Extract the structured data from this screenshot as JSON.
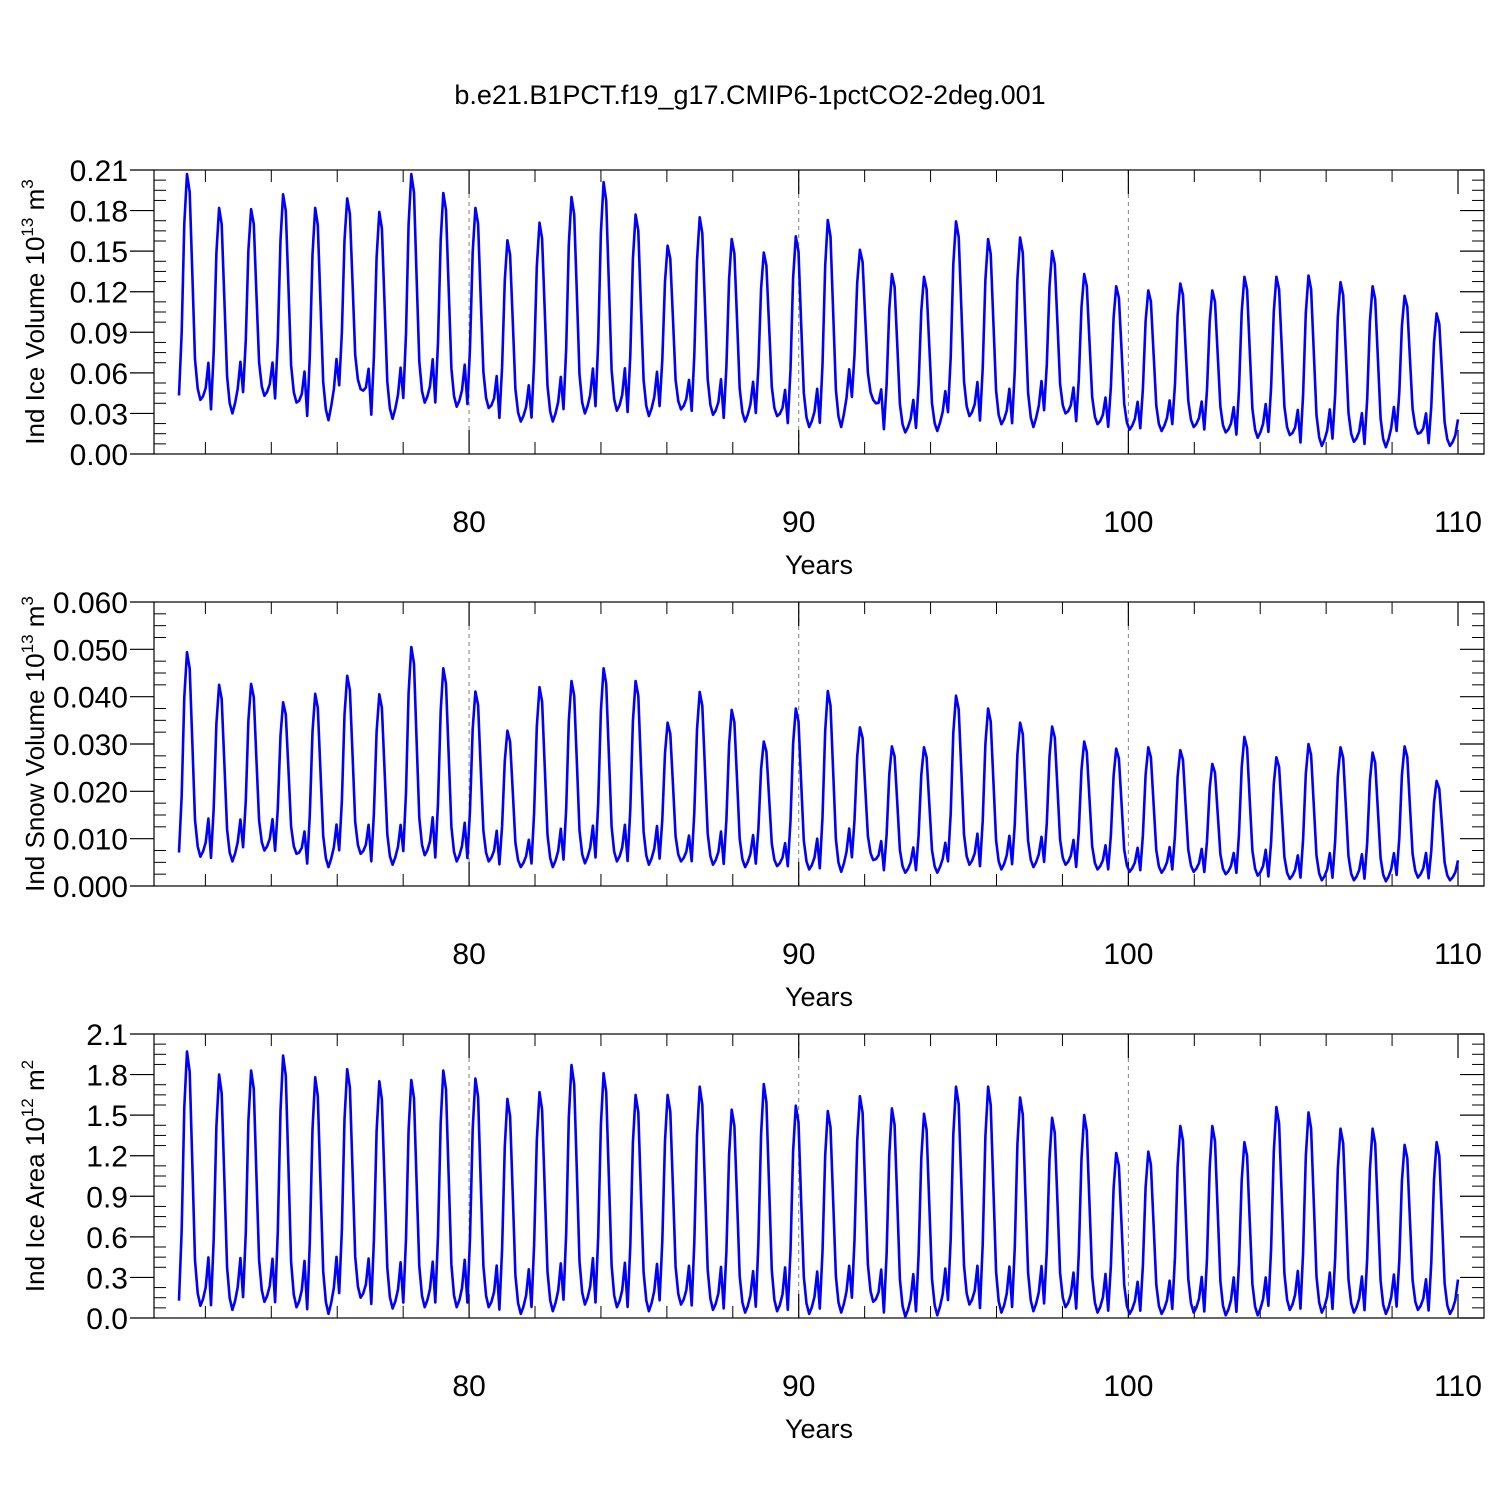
{
  "title": "b.e21.B1PCT.f19_g17.CMIP6-1pctCO2-2deg.001",
  "colors": {
    "series": "#0000ff",
    "axis": "#000000",
    "gridline": "#7f7f7f"
  },
  "chart_data": [
    {
      "type": "line",
      "xlabel": "Years",
      "ylabel": "Ind Ice Volume 10",
      "ylabel_exp": "13",
      "ylabel_unit": " m",
      "ylabel_unit_exp": "3",
      "xlim": [
        71.2,
        110
      ],
      "ylim": [
        0,
        0.21
      ],
      "xticks": [
        "80",
        "90",
        "100",
        "110"
      ],
      "yticks": [
        "0.00",
        "0.03",
        "0.06",
        "0.09",
        "0.12",
        "0.15",
        "0.18",
        "0.21"
      ],
      "ytick_values": [
        0,
        0.03,
        0.06,
        0.09,
        0.12,
        0.15,
        0.18,
        0.21
      ],
      "grid": "dashed vertical at 80, 90, 100",
      "series": [
        {
          "annual_min": [
            0.04,
            0.03,
            0.043,
            0.038,
            0.025,
            0.048,
            0.026,
            0.038,
            0.035,
            0.034,
            0.024,
            0.024,
            0.03,
            0.032,
            0.028,
            0.033,
            0.029,
            0.024,
            0.028,
            0.02,
            0.02,
            0.04,
            0.016,
            0.017,
            0.028,
            0.022,
            0.02,
            0.03,
            0.022,
            0.018,
            0.017,
            0.02,
            0.016,
            0.012,
            0.014,
            0.006,
            0.009,
            0.005,
            0.015,
            0.006
          ],
          "annual_max": [
            0.207,
            0.182,
            0.181,
            0.192,
            0.182,
            0.189,
            0.179,
            0.207,
            0.193,
            0.182,
            0.158,
            0.171,
            0.19,
            0.201,
            0.177,
            0.154,
            0.175,
            0.159,
            0.149,
            0.161,
            0.173,
            0.151,
            0.133,
            0.131,
            0.172,
            0.159,
            0.16,
            0.15,
            0.133,
            0.124,
            0.121,
            0.126,
            0.121,
            0.131,
            0.131,
            0.132,
            0.127,
            0.124,
            0.117,
            0.104
          ]
        }
      ]
    },
    {
      "type": "line",
      "xlabel": "Years",
      "ylabel": "Ind Snow Volume 10",
      "ylabel_exp": "13",
      "ylabel_unit": " m",
      "ylabel_unit_exp": "3",
      "xlim": [
        71.2,
        110
      ],
      "ylim": [
        0,
        0.06
      ],
      "xticks": [
        "80",
        "90",
        "100",
        "110"
      ],
      "yticks": [
        "0.000",
        "0.010",
        "0.020",
        "0.030",
        "0.040",
        "0.050",
        "0.060"
      ],
      "ytick_values": [
        0,
        0.01,
        0.02,
        0.03,
        0.04,
        0.05,
        0.06
      ],
      "grid": "dashed vertical at 80, 90, 100",
      "series": [
        {
          "annual_min": [
            0.0062,
            0.0052,
            0.0075,
            0.0068,
            0.004,
            0.0068,
            0.0045,
            0.0065,
            0.0052,
            0.0052,
            0.004,
            0.004,
            0.0048,
            0.0052,
            0.0045,
            0.0052,
            0.0045,
            0.004,
            0.0042,
            0.0035,
            0.003,
            0.0055,
            0.0028,
            0.0028,
            0.0045,
            0.0035,
            0.004,
            0.0045,
            0.0035,
            0.003,
            0.0028,
            0.003,
            0.0025,
            0.0022,
            0.0015,
            0.0012,
            0.0012,
            0.001,
            0.0018,
            0.0012
          ],
          "annual_max": [
            0.0494,
            0.0425,
            0.0427,
            0.0388,
            0.0406,
            0.0444,
            0.0405,
            0.0505,
            0.046,
            0.0411,
            0.0328,
            0.042,
            0.0433,
            0.046,
            0.0433,
            0.0345,
            0.041,
            0.0372,
            0.0305,
            0.0375,
            0.0412,
            0.0335,
            0.0295,
            0.0293,
            0.0402,
            0.0375,
            0.0345,
            0.0337,
            0.0305,
            0.029,
            0.0293,
            0.0287,
            0.0258,
            0.0315,
            0.0272,
            0.03,
            0.0293,
            0.0282,
            0.0295,
            0.0222
          ]
        }
      ]
    },
    {
      "type": "line",
      "xlabel": "Years",
      "ylabel": "Ind Ice Area 10",
      "ylabel_exp": "12",
      "ylabel_unit": " m",
      "ylabel_unit_exp": "2",
      "xlim": [
        71.2,
        110
      ],
      "ylim": [
        0,
        2.1
      ],
      "xticks": [
        "80",
        "90",
        "100",
        "110"
      ],
      "yticks": [
        "0.0",
        "0.3",
        "0.6",
        "0.9",
        "1.2",
        "1.5",
        "1.8",
        "2.1"
      ],
      "ytick_values": [
        0,
        0.3,
        0.6,
        0.9,
        1.2,
        1.5,
        1.8,
        2.1
      ],
      "grid": "dashed vertical at 80, 90, 100",
      "series": [
        {
          "annual_min": [
            0.09,
            0.06,
            0.12,
            0.08,
            0.03,
            0.15,
            0.07,
            0.08,
            0.08,
            0.08,
            0.03,
            0.05,
            0.1,
            0.08,
            0.05,
            0.1,
            0.06,
            0.04,
            0.05,
            0.03,
            0.04,
            0.12,
            0.01,
            0.02,
            0.1,
            0.04,
            0.05,
            0.08,
            0.04,
            0.03,
            0.03,
            0.04,
            0.02,
            0.02,
            0.06,
            0.04,
            0.04,
            0.03,
            0.06,
            0.03
          ],
          "annual_max": [
            1.97,
            1.8,
            1.83,
            1.94,
            1.78,
            1.84,
            1.75,
            1.76,
            1.83,
            1.77,
            1.62,
            1.67,
            1.87,
            1.81,
            1.65,
            1.65,
            1.71,
            1.54,
            1.73,
            1.57,
            1.53,
            1.64,
            1.55,
            1.51,
            1.71,
            1.71,
            1.63,
            1.48,
            1.5,
            1.22,
            1.23,
            1.42,
            1.42,
            1.3,
            1.56,
            1.52,
            1.4,
            1.4,
            1.28,
            1.3
          ]
        }
      ]
    }
  ]
}
